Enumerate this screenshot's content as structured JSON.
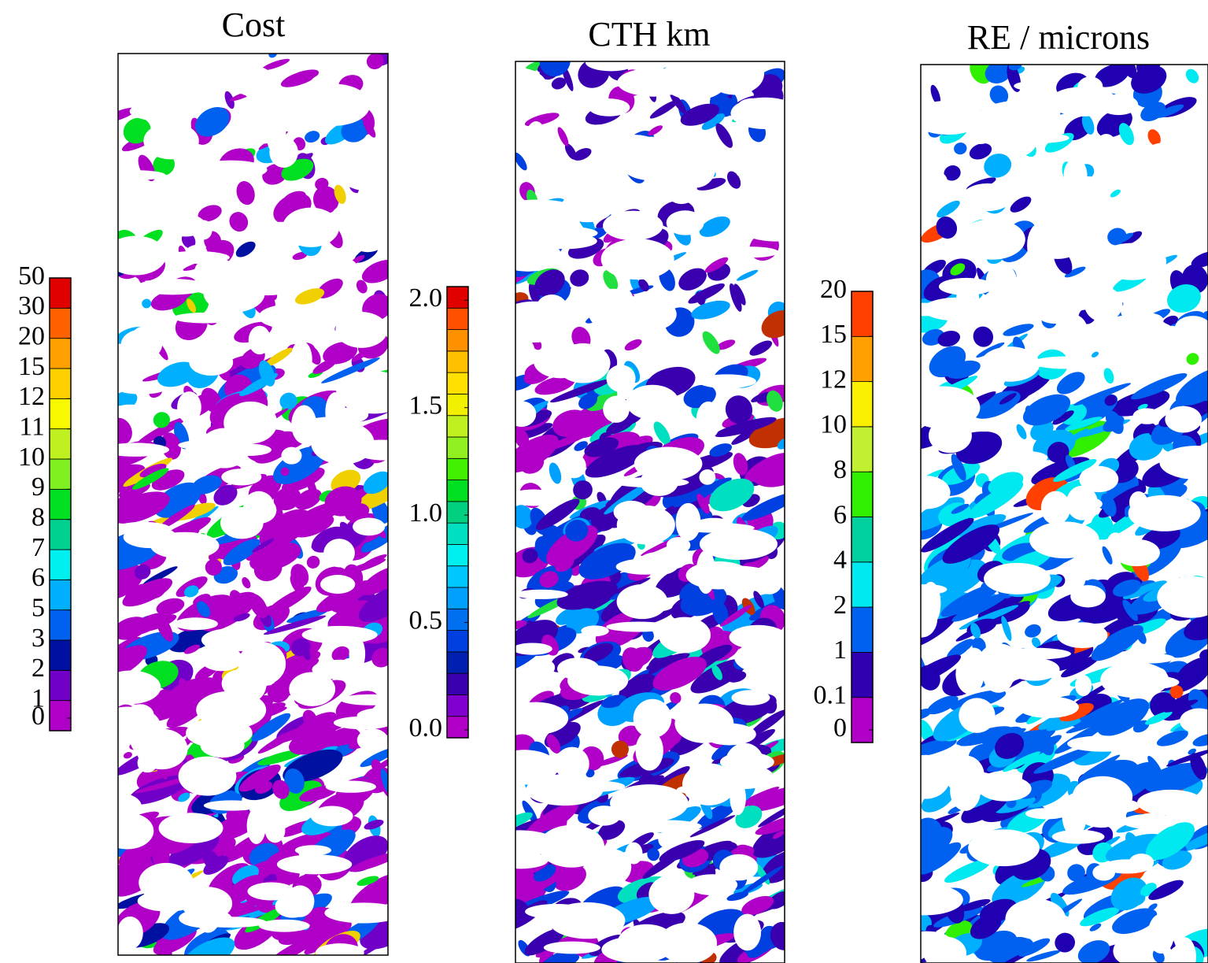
{
  "panels": [
    {
      "title": "Cost",
      "colorbar": {
        "ticks": [
          0,
          1,
          2,
          3,
          5,
          6,
          7,
          8,
          9,
          10,
          11,
          12,
          15,
          20,
          30,
          50
        ],
        "colors": [
          "#b000c8",
          "#7000c8",
          "#0010a0",
          "#0060f0",
          "#00b0ff",
          "#00f0f0",
          "#00d090",
          "#00e020",
          "#80f020",
          "#c0f020",
          "#f8f800",
          "#ffd000",
          "#ffa000",
          "#ff6000",
          "#e00000"
        ]
      }
    },
    {
      "title": "CTH km",
      "colorbar": {
        "range": [
          0,
          2.1
        ],
        "ticks": [
          {
            "value": 0,
            "label": "0.0"
          },
          0.5,
          {
            "value": 1,
            "label": "1.0"
          },
          1.5,
          {
            "value": 2,
            "label": "2.0"
          }
        ],
        "colors": [
          "#b000c8",
          "#8000d0",
          "#3a00b0",
          "#0020b0",
          "#0040e0",
          "#0070f0",
          "#00a0ff",
          "#00c8ff",
          "#00f0f0",
          "#00e0c0",
          "#00d080",
          "#00e020",
          "#40f000",
          "#90f020",
          "#c0f020",
          "#f0f000",
          "#ffe000",
          "#ffc000",
          "#ff9000",
          "#ff5000",
          "#e00000"
        ]
      }
    },
    {
      "title": "RE / microns",
      "colorbar": {
        "ticks": [
          0,
          0.1,
          1,
          2,
          4,
          6,
          8,
          10,
          12,
          15,
          20
        ],
        "colors": [
          "#b000c8",
          "#3000b0",
          "#0060f0",
          "#00e8f0",
          "#00d0a0",
          "#30f000",
          "#c0f030",
          "#f8f000",
          "#ffa000",
          "#ff4000"
        ]
      }
    }
  ]
}
